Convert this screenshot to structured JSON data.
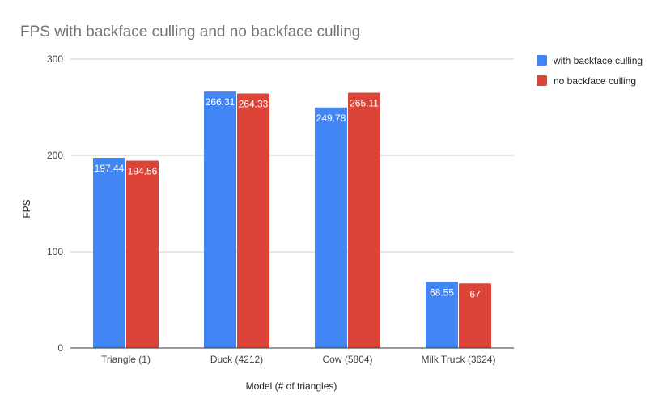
{
  "chart_data": {
    "type": "bar",
    "title": "FPS with backface culling and no backface culling",
    "xlabel": "Model (# of triangles)",
    "ylabel": "FPS",
    "ylim": [
      0,
      300
    ],
    "yticks": [
      0,
      100,
      200,
      300
    ],
    "grid": true,
    "legend_position": "right",
    "categories": [
      "Triangle (1)",
      "Duck (4212)",
      "Cow (5804)",
      "Milk Truck (3624)"
    ],
    "series": [
      {
        "name": "with backface culling",
        "color": "#4285f4",
        "values": [
          197.44,
          266.31,
          249.78,
          68.55
        ],
        "labels": [
          "197.44",
          "266.31",
          "249.78",
          "68.55"
        ]
      },
      {
        "name": "no backface culling",
        "color": "#db4437",
        "values": [
          194.56,
          264.33,
          265.11,
          67
        ],
        "labels": [
          "194.56",
          "264.33",
          "265.11",
          "67"
        ]
      }
    ]
  }
}
